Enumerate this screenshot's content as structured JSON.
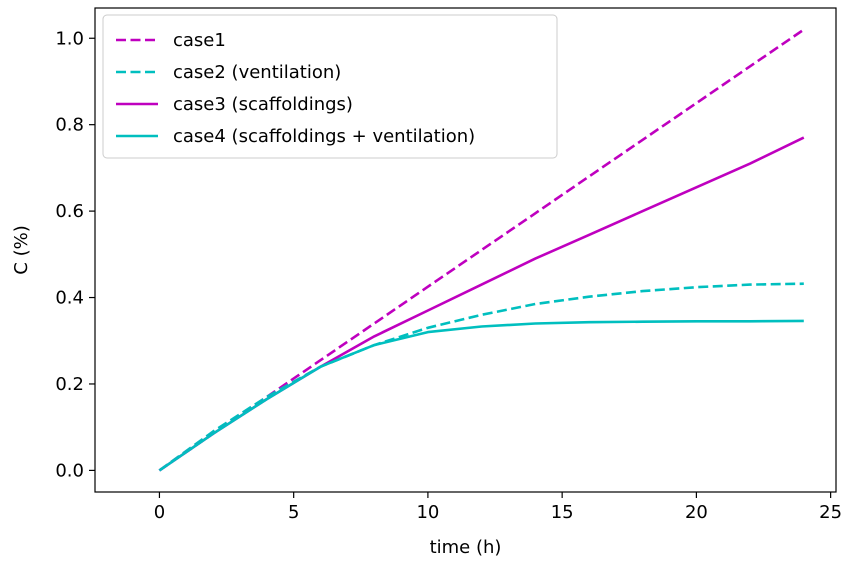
{
  "chart_data": {
    "type": "line",
    "xlabel": "time (h)",
    "ylabel": "C (%)",
    "xlim": [
      -2.4,
      25.2
    ],
    "ylim": [
      -0.05,
      1.07
    ],
    "xticks": [
      0,
      5,
      10,
      15,
      20,
      25
    ],
    "yticks": [
      0.0,
      0.2,
      0.4,
      0.6,
      0.8,
      1.0
    ],
    "xtick_labels": [
      "0",
      "5",
      "10",
      "15",
      "20",
      "25"
    ],
    "ytick_labels": [
      "0.0",
      "0.2",
      "0.4",
      "0.6",
      "0.8",
      "1.0"
    ],
    "grid": false,
    "legend_position": "top-left",
    "series": [
      {
        "name": "case1",
        "color": "#bf00bf",
        "style": "dashed",
        "x": [
          0,
          2,
          4,
          6,
          8,
          10,
          12,
          14,
          16,
          18,
          20,
          22,
          24
        ],
        "y": [
          0.0,
          0.085,
          0.17,
          0.255,
          0.34,
          0.425,
          0.51,
          0.595,
          0.68,
          0.765,
          0.85,
          0.935,
          1.02
        ]
      },
      {
        "name": "case2 (ventilation)",
        "color": "#00bfbf",
        "style": "dashed",
        "x": [
          0,
          2,
          4,
          6,
          8,
          10,
          12,
          14,
          16,
          18,
          20,
          22,
          24
        ],
        "y": [
          0.0,
          0.09,
          0.17,
          0.24,
          0.29,
          0.33,
          0.36,
          0.385,
          0.402,
          0.415,
          0.424,
          0.43,
          0.432
        ]
      },
      {
        "name": "case3 (scaffoldings)",
        "color": "#bf00bf",
        "style": "solid",
        "x": [
          0,
          2,
          4,
          6,
          8,
          10,
          12,
          14,
          16,
          18,
          20,
          22,
          24
        ],
        "y": [
          0.0,
          0.085,
          0.165,
          0.24,
          0.31,
          0.37,
          0.43,
          0.49,
          0.545,
          0.6,
          0.655,
          0.71,
          0.77
        ]
      },
      {
        "name": "case4 (scaffoldings + ventilation)",
        "color": "#00bfbf",
        "style": "solid",
        "x": [
          0,
          2,
          4,
          6,
          8,
          10,
          12,
          14,
          16,
          18,
          20,
          22,
          24
        ],
        "y": [
          0.0,
          0.085,
          0.165,
          0.24,
          0.29,
          0.32,
          0.333,
          0.34,
          0.343,
          0.344,
          0.345,
          0.345,
          0.346
        ]
      }
    ]
  }
}
